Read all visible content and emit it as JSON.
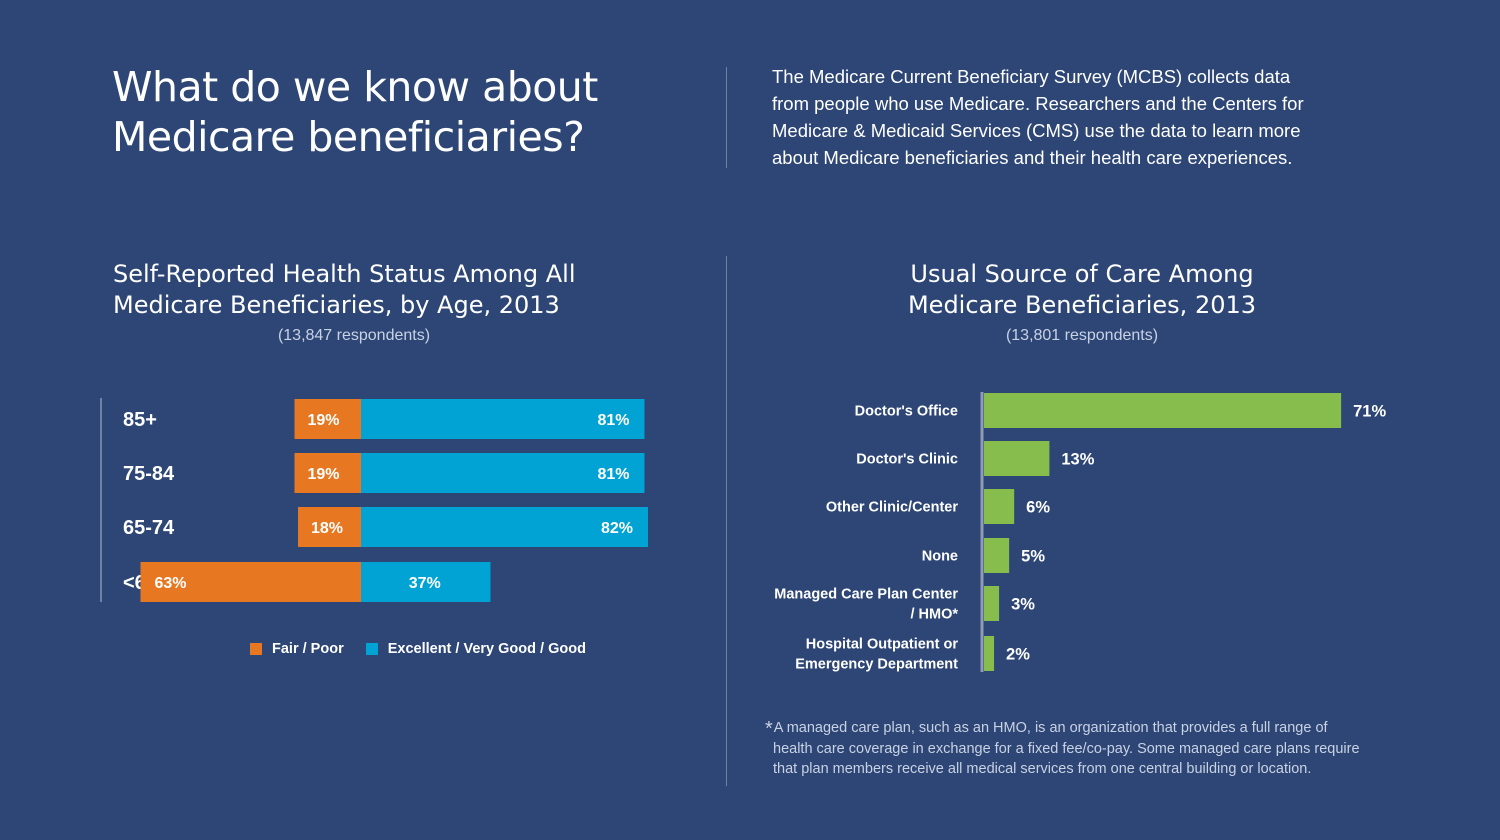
{
  "headline": {
    "line1": "What do we know about",
    "line2": "Medicare beneficiaries?"
  },
  "intro": {
    "lines": [
      "The Medicare Current Beneficiary Survey (MCBS) collects data",
      "from people who use Medicare. Researchers and the Centers for",
      "Medicare & Medicaid Services (CMS) use the data to learn more",
      "about Medicare beneficiaries and their health care experiences."
    ]
  },
  "colors": {
    "background": "#2d4676",
    "fair_poor": "#e87722",
    "excellent_good": "#00a3d3",
    "care_bar": "#86bd4c",
    "divider": "#6f82a6"
  },
  "chart_data": [
    {
      "type": "bar",
      "orientation": "horizontal",
      "stacked": true,
      "title_lines": [
        "Self-Reported Health Status Among All",
        "Medicare Beneficiaries, by Age, 2013"
      ],
      "subtitle": "(13,847 respondents)",
      "categories": [
        "85+",
        "75-84",
        "65-74",
        "<65"
      ],
      "series": [
        {
          "name": "Fair / Poor",
          "values": [
            19,
            19,
            18,
            63
          ],
          "labels": [
            "19%",
            "19%",
            "18%",
            "63%"
          ]
        },
        {
          "name": "Excellent / Very Good / Good",
          "values": [
            81,
            81,
            82,
            37
          ],
          "labels": [
            "81%",
            "81%",
            "82%",
            "37%"
          ]
        }
      ],
      "legend_position": "bottom"
    },
    {
      "type": "bar",
      "orientation": "horizontal",
      "title_lines": [
        "Usual Source of Care Among",
        "Medicare Beneficiaries, 2013"
      ],
      "subtitle": "(13,801 respondents)",
      "categories": [
        [
          "Doctor's Office"
        ],
        [
          "Doctor's Clinic"
        ],
        [
          "Other Clinic/Center"
        ],
        [
          "None"
        ],
        [
          "Managed Care Plan Center",
          "/ HMO*"
        ],
        [
          "Hospital Outpatient or",
          "Emergency Department"
        ]
      ],
      "values": [
        71,
        13,
        6,
        5,
        3,
        2
      ],
      "labels": [
        "71%",
        "13%",
        "6%",
        "5%",
        "3%",
        "2%"
      ]
    }
  ],
  "footnote": {
    "star": "*",
    "lines": [
      "A managed care plan, such as an HMO, is an organization that provides a full range of",
      "health care coverage in exchange for a fixed fee/co-pay. Some managed care plans require",
      "that plan members receive all medical services from one central building or location."
    ]
  }
}
